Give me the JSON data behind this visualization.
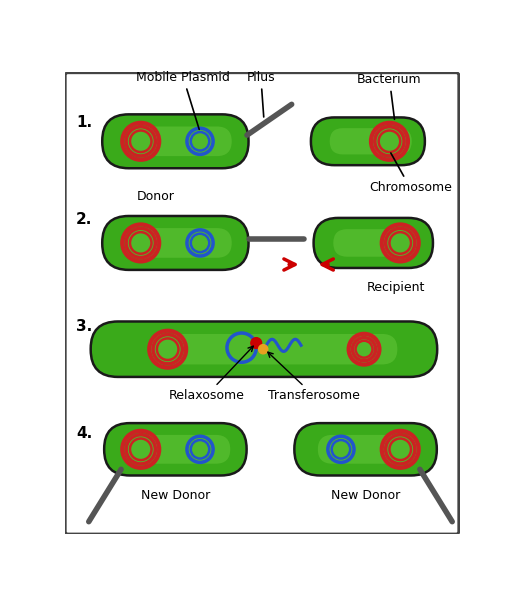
{
  "background_color": "#ffffff",
  "border_color": "#444444",
  "bacterium_green": "#3aaa1a",
  "bacterium_highlight": "#6dcc40",
  "chromosome_color": "#cc2222",
  "plasmid_color": "#2255cc",
  "step_labels": [
    "1.",
    "2.",
    "3.",
    "4."
  ],
  "annotations": {
    "mobile_plasmid": "Mobile Plasmid",
    "pilus": "Pilus",
    "bacterium": "Bacterium",
    "chromosome": "Chromosome",
    "donor": "Donor",
    "recipient": "Recipient",
    "relaxosome": "Relaxosome",
    "transferosome": "Transferosome",
    "new_donor1": "New Donor",
    "new_donor2": "New Donor"
  },
  "label_fontsize": 9,
  "step_fontsize": 11
}
